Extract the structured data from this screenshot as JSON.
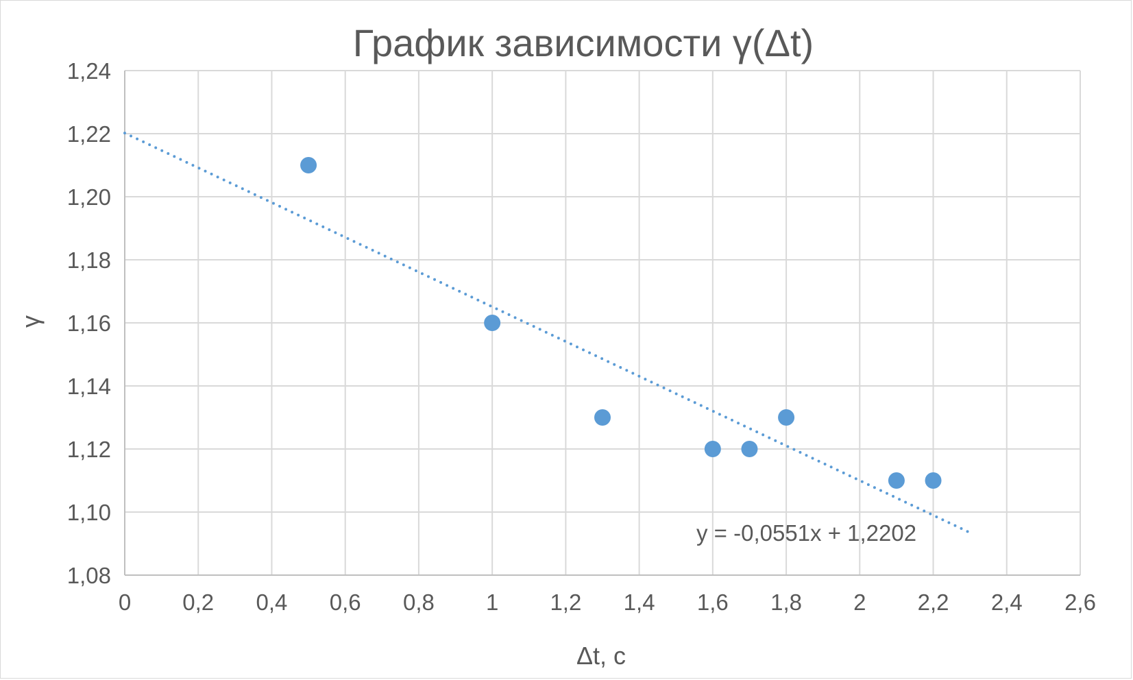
{
  "chart_data": {
    "type": "scatter",
    "title": "График зависимости γ(Δt)",
    "xlabel": "Δt, с",
    "ylabel": "γ",
    "xlim": [
      0,
      2.6
    ],
    "ylim": [
      1.08,
      1.24
    ],
    "x_ticks": [
      0,
      0.2,
      0.4,
      0.6,
      0.8,
      1,
      1.2,
      1.4,
      1.6,
      1.8,
      2,
      2.2,
      2.4,
      2.6
    ],
    "x_tick_labels": [
      "0",
      "0,2",
      "0,4",
      "0,6",
      "0,8",
      "1",
      "1,2",
      "1,4",
      "1,6",
      "1,8",
      "2",
      "2,2",
      "2,4",
      "2,6"
    ],
    "y_ticks": [
      1.08,
      1.1,
      1.12,
      1.14,
      1.16,
      1.18,
      1.2,
      1.22,
      1.24
    ],
    "y_tick_labels": [
      "1,08",
      "1,10",
      "1,12",
      "1,14",
      "1,16",
      "1,18",
      "1,20",
      "1,22",
      "1,24"
    ],
    "grid": true,
    "legend": "none",
    "series": [
      {
        "x": [
          0.5,
          1.0,
          1.3,
          1.6,
          1.7,
          1.8,
          2.1,
          2.2
        ],
        "y": [
          1.21,
          1.16,
          1.13,
          1.12,
          1.12,
          1.13,
          1.11,
          1.11
        ],
        "color": "#5b9bd5"
      }
    ],
    "trendline": {
      "type": "linear",
      "slope": -0.0551,
      "intercept": 1.2202,
      "x_range": [
        0,
        2.3
      ],
      "style": "dotted",
      "color": "#5b9bd5",
      "equation_label": "y = -0,0551x + 1,2202"
    }
  }
}
